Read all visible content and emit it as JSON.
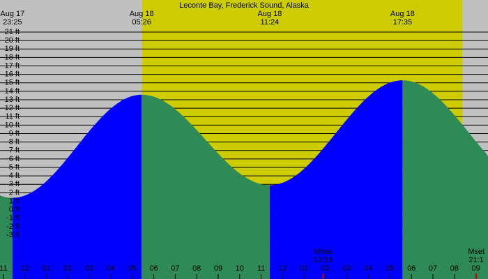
{
  "chart_data": {
    "type": "tide",
    "title": "Leconte Bay, Frederick Sound, Alaska",
    "extremes": [
      {
        "date": "Aug 17",
        "time": "23:25",
        "height": 1.4
      },
      {
        "date": "Aug 18",
        "time": "05:26",
        "height": 13.6
      },
      {
        "date": "Aug 18",
        "time": "11:24",
        "height": 2.9
      },
      {
        "date": "Aug 18",
        "time": "17:35",
        "height": 15.3
      }
    ],
    "categories": [
      "11",
      "12",
      "01",
      "02",
      "03",
      "04",
      "05",
      "06",
      "07",
      "08",
      "09",
      "10",
      "11",
      "12",
      "01",
      "02",
      "03",
      "04",
      "05",
      "06",
      "07",
      "08",
      "09"
    ],
    "moon": [
      {
        "label": "Mrise",
        "time": "13:53"
      },
      {
        "label": "Mset",
        "time": "21:1"
      }
    ],
    "daylight": [
      5.45,
      20.37
    ],
    "ylim": [
      -8.2,
      24.8
    ],
    "yticks": [
      {
        "value": 21,
        "label": "21 ft"
      },
      {
        "value": 20,
        "label": "20 ft"
      },
      {
        "value": 19,
        "label": "19 ft"
      },
      {
        "value": 18,
        "label": "18 ft"
      },
      {
        "value": 17,
        "label": "17 ft"
      },
      {
        "value": 16,
        "label": "16 ft"
      },
      {
        "value": 15,
        "label": "15 ft"
      },
      {
        "value": 14,
        "label": "14 ft"
      },
      {
        "value": 13,
        "label": "13 ft"
      },
      {
        "value": 12,
        "label": "12 ft"
      },
      {
        "value": 11,
        "label": "11 ft"
      },
      {
        "value": 10,
        "label": "10 ft"
      },
      {
        "value": 9,
        "label": "9 ft"
      },
      {
        "value": 8,
        "label": "8 ft"
      },
      {
        "value": 7,
        "label": "7 ft"
      },
      {
        "value": 6,
        "label": "6 ft"
      },
      {
        "value": 5,
        "label": "5 ft"
      },
      {
        "value": 4,
        "label": "4 ft"
      },
      {
        "value": 3,
        "label": "3 ft"
      },
      {
        "value": 2,
        "label": "2 ft"
      },
      {
        "value": 1,
        "label": "1 ft"
      },
      {
        "value": 0,
        "label": "0 ft"
      },
      {
        "value": -1,
        "label": "-1 ft"
      },
      {
        "value": -2,
        "label": "-2 ft"
      },
      {
        "value": -3,
        "label": "-3 ft"
      }
    ],
    "grid": true,
    "colors": {
      "night": "#c0c0c0",
      "day": "#cccc00",
      "rising": "#0000ff",
      "falling": "#2e8b57",
      "moon": "#cc0000"
    }
  }
}
